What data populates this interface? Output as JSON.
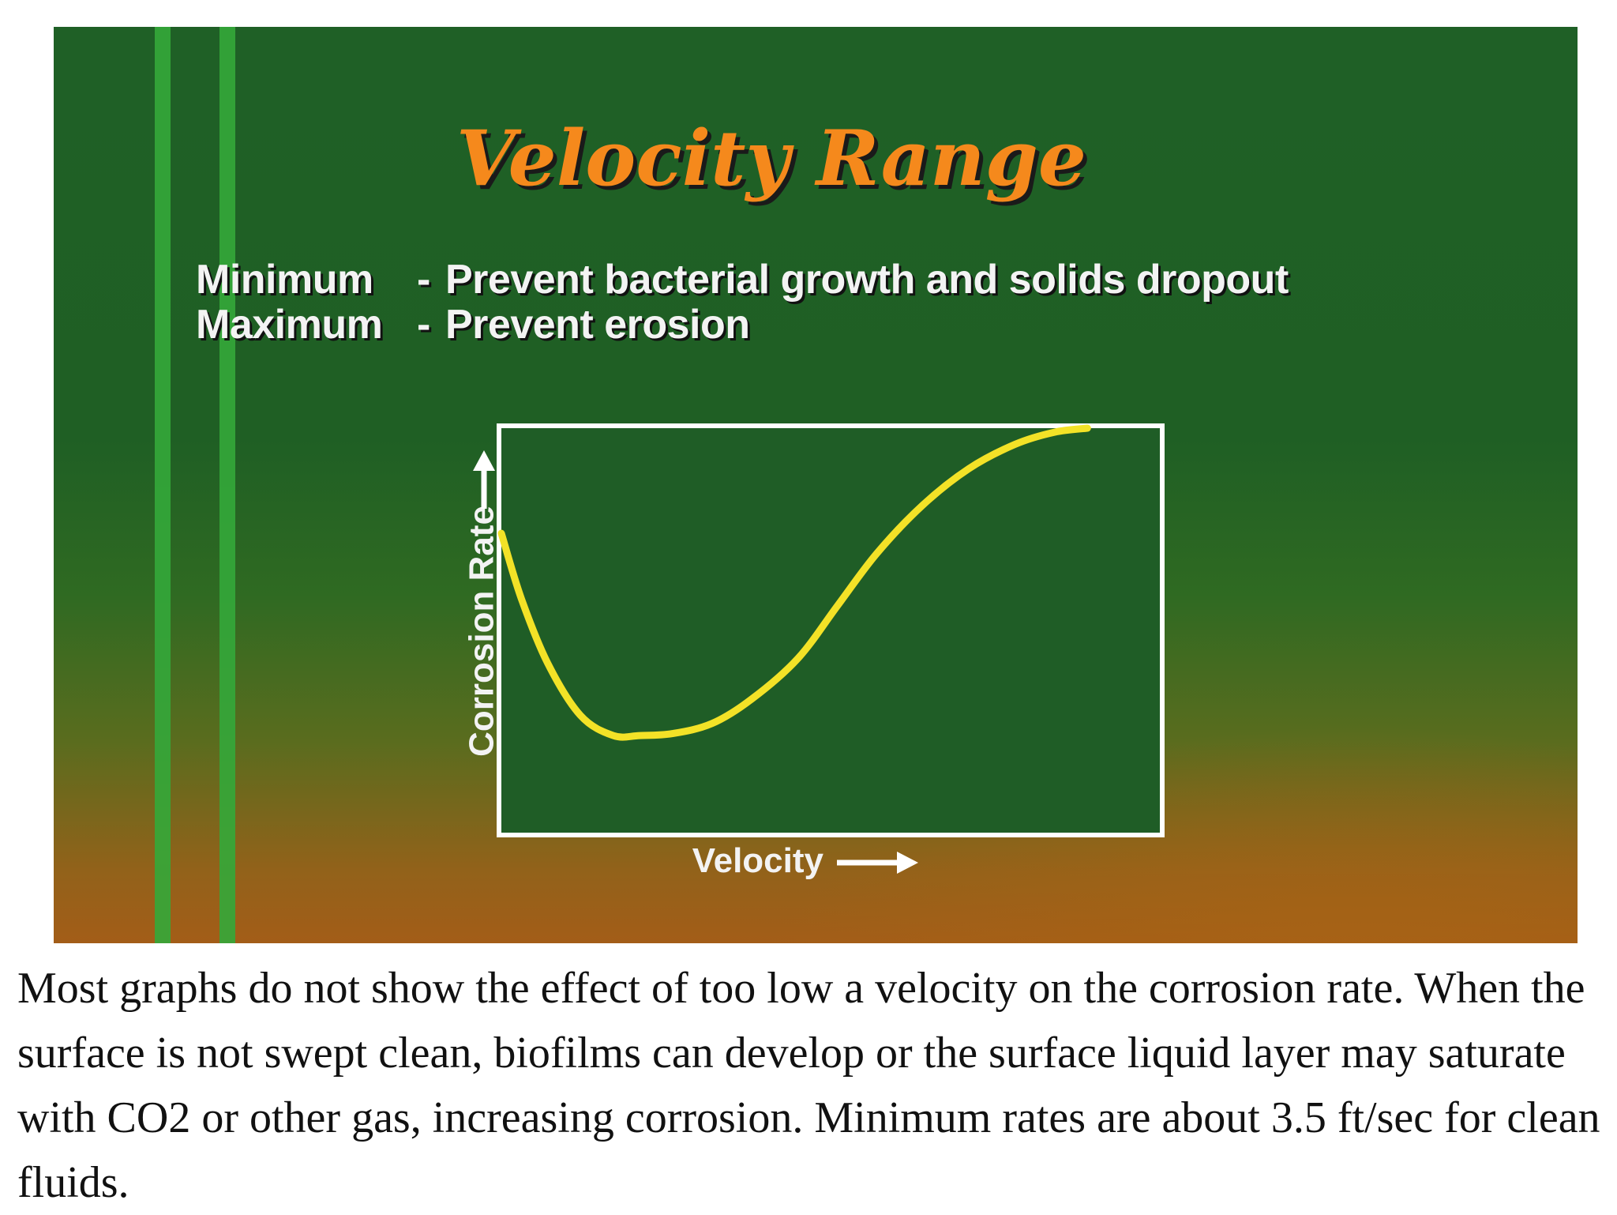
{
  "slide": {
    "title": "Velocity Range",
    "notes": [
      {
        "term": "Minimum",
        "text": "Prevent bacterial growth and solids dropout"
      },
      {
        "term": "Maximum",
        "text": "Prevent erosion"
      }
    ]
  },
  "chart_data": {
    "type": "line",
    "xlabel": "Velocity",
    "ylabel": "Corrosion Rate",
    "x_axis_arrow": "→",
    "y_axis_arrow": "→",
    "grid": false,
    "xlim": [
      0,
      1
    ],
    "ylim": [
      0,
      1
    ],
    "series": [
      {
        "color": "#f3e227",
        "x": [
          0.0,
          0.03,
          0.07,
          0.12,
          0.17,
          0.21,
          0.26,
          0.32,
          0.38,
          0.45,
          0.51,
          0.57,
          0.64,
          0.71,
          0.78,
          0.84,
          0.89
        ],
        "y": [
          0.74,
          0.58,
          0.42,
          0.29,
          0.24,
          0.24,
          0.245,
          0.27,
          0.33,
          0.43,
          0.56,
          0.69,
          0.81,
          0.9,
          0.96,
          0.99,
          1.0
        ]
      }
    ]
  },
  "colors": {
    "title": "#f5891c",
    "curve": "#f3e227",
    "frame": "#ffffff",
    "stripes": "#34a83a"
  },
  "caption": "Most graphs do not show the effect of too low a velocity on the corrosion rate. When the surface is not swept clean, biofilms can develop or the surface liquid layer may saturate with CO2 or other gas, increasing corrosion. Minimum rates are about 3.5 ft/sec for clean fluids."
}
